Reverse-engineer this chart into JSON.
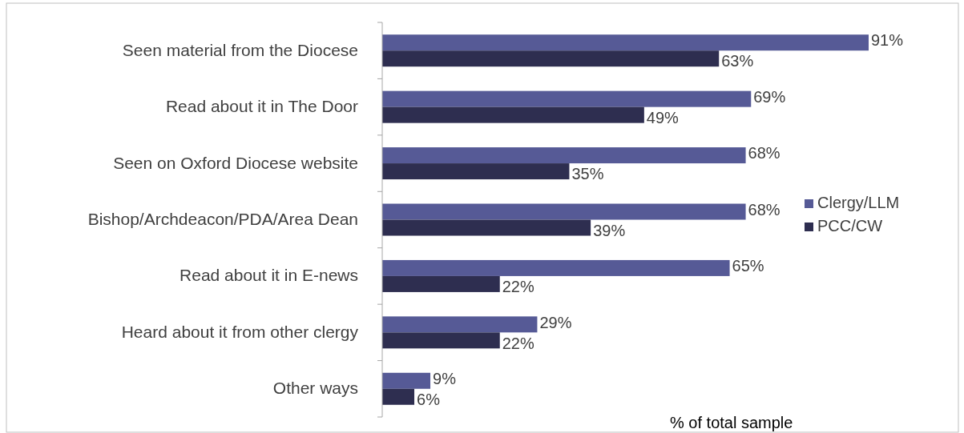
{
  "chart_data": {
    "type": "bar",
    "orientation": "horizontal",
    "categories": [
      "Seen material from the Diocese",
      "Read about it in The Door",
      "Seen on Oxford Diocese website",
      "Bishop/Archdeacon/PDA/Area Dean",
      "Read about it in E-news",
      "Heard about it from other clergy",
      "Other ways"
    ],
    "series": [
      {
        "name": "Clergy/LLM",
        "color": "#565a96",
        "values": [
          91,
          69,
          68,
          68,
          65,
          29,
          9
        ],
        "value_labels": [
          "91%",
          "69%",
          "68%",
          "68%",
          "65%",
          "29%",
          "9%"
        ]
      },
      {
        "name": "PCC/CW",
        "color": "#2e2e50",
        "values": [
          63,
          49,
          35,
          39,
          22,
          22,
          6
        ],
        "value_labels": [
          "63%",
          "49%",
          "35%",
          "39%",
          "22%",
          "22%",
          "6%"
        ]
      }
    ],
    "legend": "right",
    "annotations": [
      "% of total sample"
    ]
  }
}
